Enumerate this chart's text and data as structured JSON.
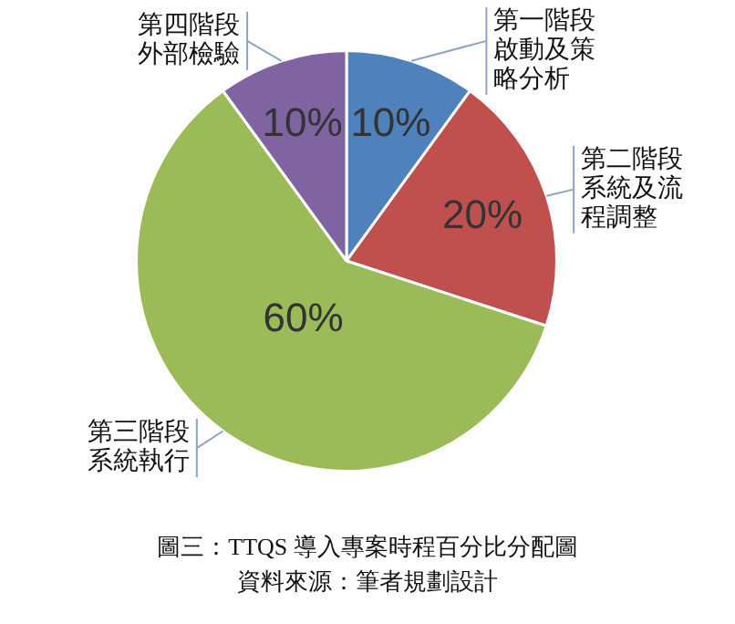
{
  "chart_data": {
    "type": "pie",
    "title": "圖三：TTQS 導入專案時程百分比分配圖",
    "annotations": [
      "資料來源：筆者規劃設計"
    ],
    "categories": [
      "第一階段啟動及策略分析",
      "第二階段系統及流程調整",
      "第三階段系統執行",
      "第四階段外部檢驗"
    ],
    "values": [
      10,
      20,
      60,
      10
    ],
    "colors": [
      "#4f81bd",
      "#c0504d",
      "#9bbb59",
      "#8064a2"
    ],
    "value_labels": [
      "10%",
      "20%",
      "60%",
      "10%"
    ]
  }
}
